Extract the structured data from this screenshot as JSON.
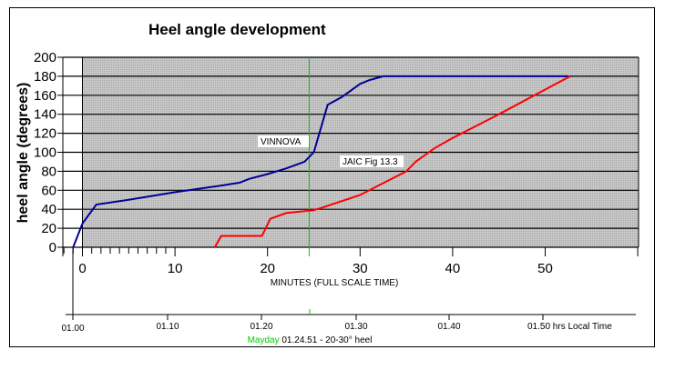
{
  "chart_data": {
    "type": "line",
    "title": "Heel angle development",
    "xlabel": "MINUTES (FULL SCALE TIME)",
    "ylabel": "heel angle (degrees)",
    "xlim": [
      -2,
      60
    ],
    "ylim": [
      0,
      200
    ],
    "x_ticks": [
      0,
      10,
      20,
      30,
      40,
      50
    ],
    "y_ticks": [
      0,
      20,
      40,
      60,
      80,
      100,
      120,
      140,
      160,
      180,
      200
    ],
    "grid": "horizontal",
    "plot_background": "#c0c0c0",
    "series": [
      {
        "name": "VINNOVA",
        "color": "#000099",
        "x": [
          -1,
          0,
          1.5,
          5,
          10,
          15,
          17,
          18,
          20,
          22,
          24,
          25,
          26.5,
          28,
          30,
          31,
          32.5,
          52.5
        ],
        "y": [
          0,
          25,
          45,
          50,
          58,
          65,
          68,
          72,
          77,
          83,
          90,
          100,
          150,
          158,
          172,
          176,
          180,
          180
        ]
      },
      {
        "name": "JAIC Fig 13.3",
        "color": "#ff0000",
        "x": [
          14.3,
          15,
          19.4,
          20.3,
          22,
          25,
          26,
          30,
          35,
          36,
          38,
          40,
          45,
          52.7
        ],
        "y": [
          0,
          12,
          12,
          30,
          36,
          39,
          42,
          55,
          80,
          90,
          104,
          115,
          140,
          180
        ]
      }
    ],
    "marker_line": {
      "x": 24.5,
      "color": "#00cc00"
    },
    "time_axis": {
      "ticks": [
        "01.00",
        "01.10",
        "01.20",
        "01.30",
        "01.40",
        "01.50 hrs Local Time"
      ],
      "mayday_label": "Mayday",
      "mayday_text": "01.24.51 - 20-30° heel",
      "mayday_color": "#00cc00"
    }
  }
}
